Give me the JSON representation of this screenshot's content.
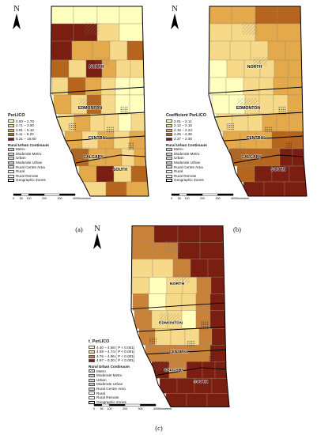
{
  "panels": [
    {
      "id": "a",
      "caption": "(a)",
      "legend_title": "PerLICO",
      "classes": [
        {
          "label": "0.00 – 2.70",
          "color": "#ffffbe"
        },
        {
          "label": "2.71 – 3.90",
          "color": "#f7d98a"
        },
        {
          "label": "3.91 – 5.10",
          "color": "#e3a94b"
        },
        {
          "label": "5.11 – 6.20",
          "color": "#b5651d"
        },
        {
          "label": "6.21 – 16.80",
          "color": "#7a1e12"
        }
      ]
    },
    {
      "id": "b",
      "caption": "(b)",
      "legend_title": "Coefficient PerLICO",
      "classes": [
        {
          "label": "2.01 – 2.11",
          "color": "#ffffbe"
        },
        {
          "label": "2.12 – 2.15",
          "color": "#f7d98a"
        },
        {
          "label": "2.16 – 2.24",
          "color": "#e3a94b"
        },
        {
          "label": "2.25 – 2.36",
          "color": "#b5651d"
        },
        {
          "label": "2.37 – 2.46",
          "color": "#7a1e12"
        }
      ]
    },
    {
      "id": "c",
      "caption": "(c)",
      "legend_title": "t_PerLICO",
      "classes": [
        {
          "label": "4.40 – 4.58 ( P < 0.001)",
          "color": "#ffffbe"
        },
        {
          "label": "4.59 – 4.74 ( P < 0.001)",
          "color": "#f7d98a"
        },
        {
          "label": "4.75 – 4.96 ( P < 0.001)",
          "color": "#c8823a"
        },
        {
          "label": "4.97 – 5.30 ( P < 0.001)",
          "color": "#7a1e12"
        }
      ]
    }
  ],
  "rural_urban": {
    "title": "Rural Urban Continuum",
    "items": [
      {
        "label": "Metro",
        "pattern": "hatch"
      },
      {
        "label": "Moderate Metro",
        "pattern": "hatch2"
      },
      {
        "label": "Urban",
        "pattern": "dots"
      },
      {
        "label": "Moderate Urban",
        "pattern": "cross"
      },
      {
        "label": "Rural Centre Area",
        "pattern": "dots"
      },
      {
        "label": "Rural",
        "pattern": "plain"
      },
      {
        "label": "Rural Remote",
        "pattern": "plain"
      },
      {
        "label": "Geographic Zones",
        "pattern": "gz"
      }
    ]
  },
  "zones": [
    "NORTH",
    "EDMONTON",
    "CENTRAL",
    "CALGARY",
    "SOUTH"
  ],
  "north_label": "N",
  "scale": {
    "ticks": [
      "0",
      "50",
      "100",
      "200",
      "300",
      "400"
    ],
    "unit": "Kilometers"
  }
}
